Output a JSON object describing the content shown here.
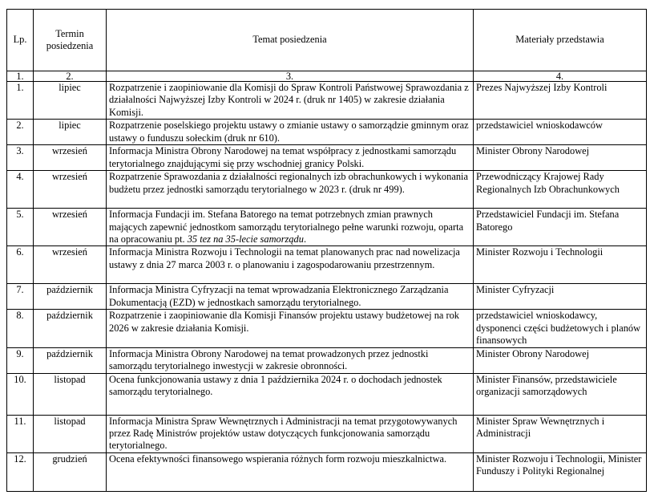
{
  "header": {
    "lp": "Lp.",
    "term": "Termin posiedzenia",
    "topic": "Temat posiedzenia",
    "presenter": "Materiały przedstawia"
  },
  "numbers": [
    "1.",
    "2.",
    "3.",
    "4."
  ],
  "rows": [
    {
      "lp": "1.",
      "month": "lipiec",
      "topic": "Rozpatrzenie i zaopiniowanie dla Komisji do Spraw Kontroli Państwowej Sprawozdania z działalności Najwyższej Izby Kontroli w 2024 r. (druk nr 1405) w zakresie działania Komisji.",
      "presenter": "Prezes Najwyższej Izby Kontroli"
    },
    {
      "lp": "2.",
      "month": "lipiec",
      "topic": "Rozpatrzenie poselskiego projektu ustawy o zmianie ustawy o samorządzie gminnym oraz ustawy o funduszu sołeckim (druk nr 610).",
      "presenter": "przedstawiciel wnioskodawców"
    },
    {
      "lp": "3.",
      "month": "wrzesień",
      "topic": "Informacja Ministra Obrony Narodowej na temat współpracy z jednostkami samorządu terytorialnego znajdującymi się przy wschodniej granicy Polski.",
      "presenter": "Minister Obrony Narodowej"
    },
    {
      "lp": "4.",
      "month": "wrzesień",
      "topic": "Rozpatrzenie Sprawozdania z działalności regionalnych izb obrachunkowych i wykonania budżetu przez jednostki samorządu terytorialnego w 2023 r. (druk nr 499).",
      "presenter": "Przewodniczący Krajowej Rady Regionalnych Izb Obrachunkowych"
    },
    {
      "lp": "5.",
      "month": "wrzesień",
      "topic": {
        "before": "Informacja Fundacji im. Stefana Batorego na temat potrzebnych zmian prawnych mających zapewnić jednostkom samorządu terytorialnego pełne warunki rozwoju, oparta na opracowaniu pt. ",
        "italic": "35 tez na 35-lecie samorządu",
        "after": "."
      },
      "presenter": "Przedstawiciel Fundacji im. Stefana Batorego"
    },
    {
      "lp": "6.",
      "month": "wrzesień",
      "topic": "Informacja Ministra Rozwoju i Technologii na temat planowanych prac nad nowelizacja ustawy z dnia 27 marca 2003 r. o planowaniu i zagospodarowaniu przestrzennym.",
      "presenter": "Minister Rozwoju i Technologii"
    },
    {
      "lp": "7.",
      "month": "październik",
      "topic": "Informacja Ministra Cyfryzacji na temat wprowadzania Elektronicznego Zarządzania Dokumentacją (EZD) w jednostkach samorządu terytorialnego.",
      "presenter": "Minister Cyfryzacji"
    },
    {
      "lp": "8.",
      "month": "październik",
      "topic": "Rozpatrzenie i zaopiniowanie dla Komisji Finansów projektu ustawy budżetowej na rok 2026 w zakresie działania Komisji.",
      "presenter": "przedstawiciel wnioskodawcy, dysponenci części budżetowych i planów finansowych"
    },
    {
      "lp": "9.",
      "month": "październik",
      "topic": "Informacja Ministra Obrony Narodowej na temat prowadzonych przez jednostki samorządu terytorialnego inwestycji w zakresie obronności.",
      "presenter": "Minister Obrony Narodowej"
    },
    {
      "lp": "10.",
      "month": "listopad",
      "topic": "Ocena funkcjonowania ustawy z dnia 1 października 2024 r. o dochodach jednostek samorządu terytorialnego.",
      "presenter": "Minister Finansów, przedstawiciele organizacji samorządowych"
    },
    {
      "lp": "11.",
      "month": "listopad",
      "topic": "Informacja Ministra Spraw Wewnętrznych i Administracji na temat przygotowywanych przez Radę Ministrów projektów ustaw dotyczących funkcjonowania samorządu terytorialnego.",
      "presenter": "Minister Spraw Wewnętrznych i Administracji"
    },
    {
      "lp": "12.",
      "month": "grudzień",
      "topic": "Ocena efektywności finansowego wspierania różnych form rozwoju mieszkalnictwa.",
      "presenter": "Minister Rozwoju i Technologii, Minister Funduszy i Polityki Regionalnej"
    }
  ]
}
